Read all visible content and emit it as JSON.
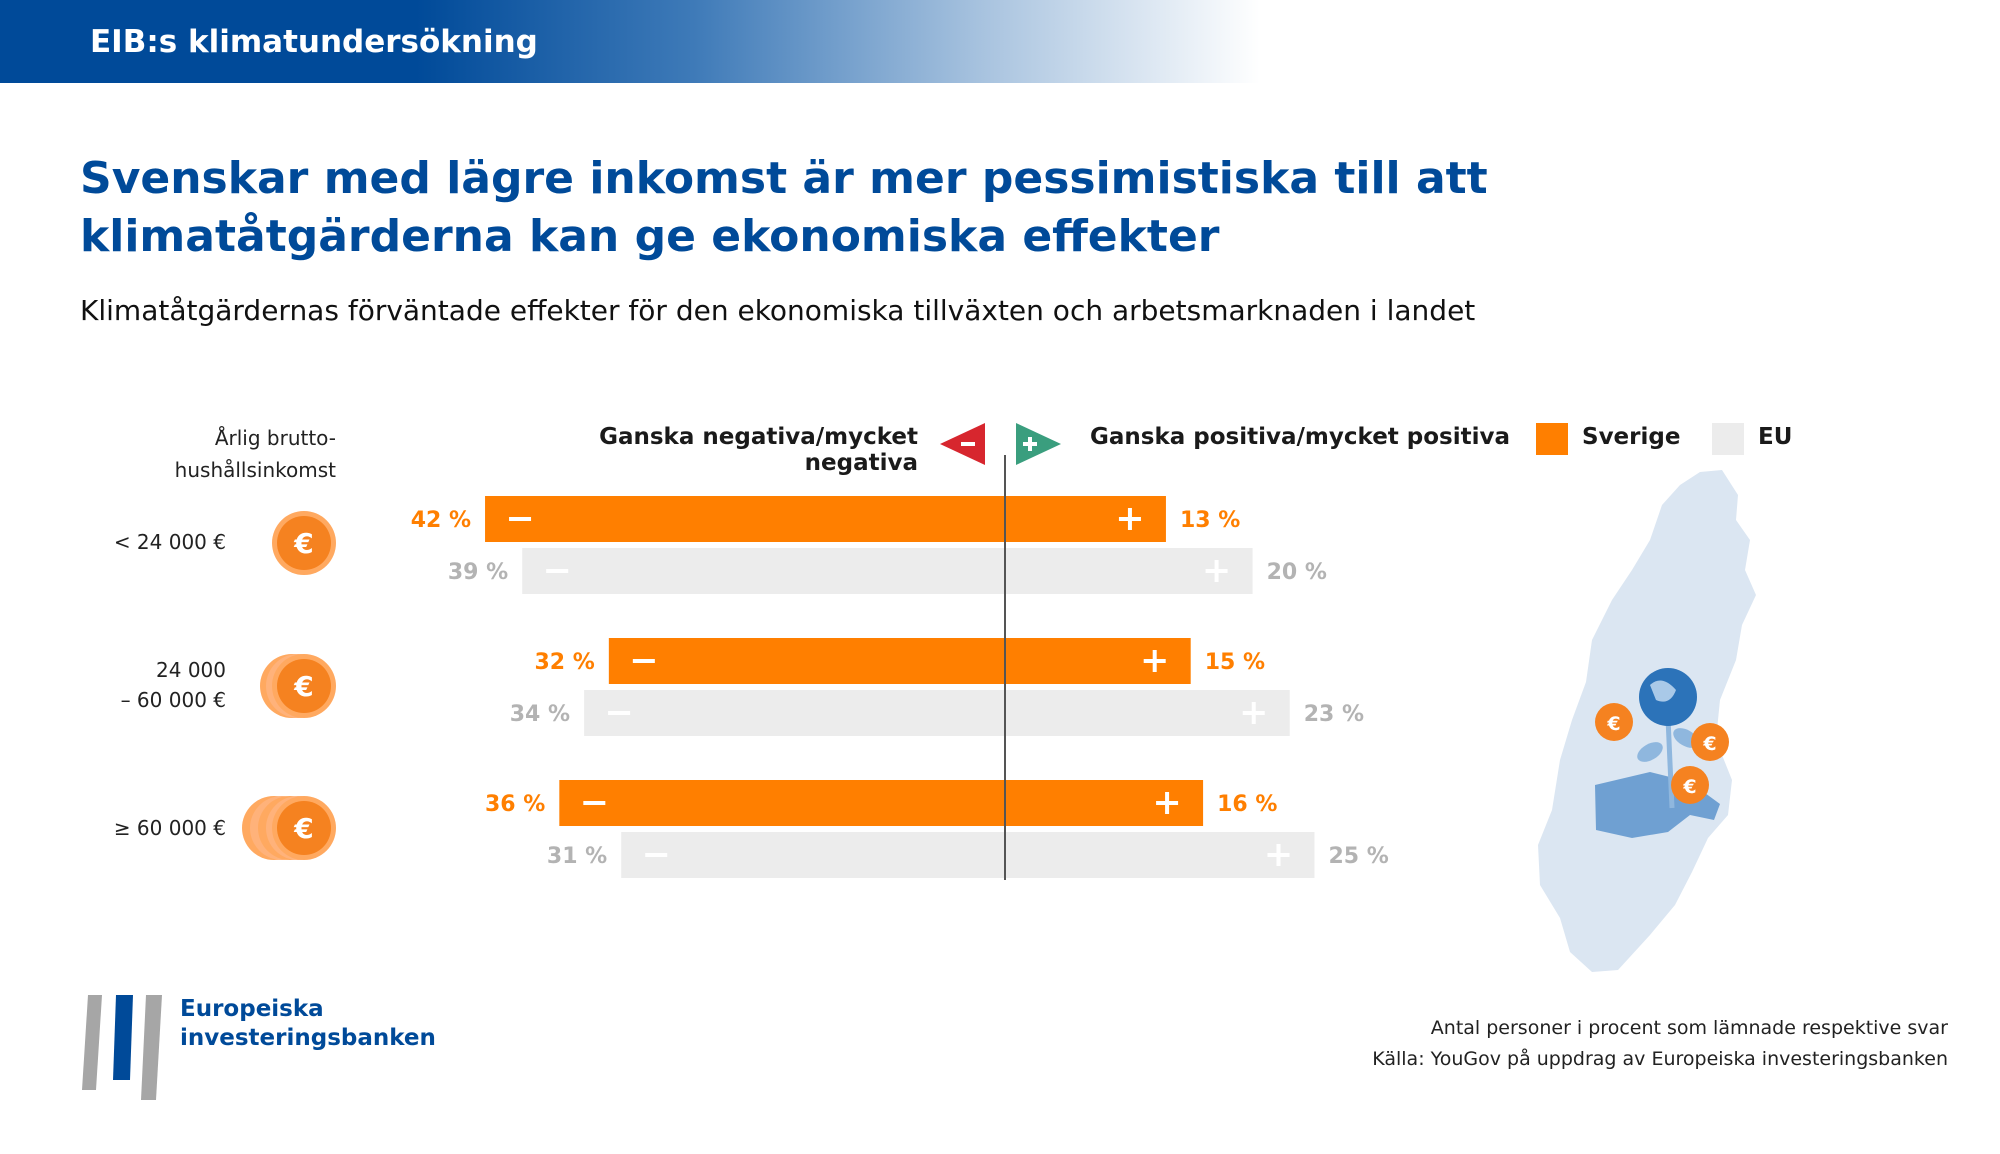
{
  "header": {
    "title": "EIB:s klimatundersökning"
  },
  "headline": {
    "line1": "Svenskar med lägre inkomst är mer pessimistiska till att",
    "line2": "klimatåtgärderna kan ge ekonomiska effekter"
  },
  "subtitle": "Klimatåtgärdernas förväntade effekter för den ekonomiska tillväxten och arbetsmarknaden i landet",
  "income_header": {
    "line1": "Årlig brutto-",
    "line2": "hushållsinkomst"
  },
  "income_groups": [
    {
      "line1": "< 24 000 €",
      "line2": ""
    },
    {
      "line1": "24 000",
      "line2": "– 60 000 €"
    },
    {
      "line1": "≥ 60 000 €",
      "line2": ""
    }
  ],
  "headers": {
    "negative": "Ganska negativa/mycket negativa",
    "positive": "Ganska positiva/mycket positiva"
  },
  "legend": {
    "sverige": "Sverige",
    "eu": "EU"
  },
  "colors": {
    "sverige": "#ff7f00",
    "eu": "#ececec",
    "eu_label": "#b3b3b3",
    "negative_arrow": "#d7262e",
    "positive_arrow": "#3a9e7e",
    "brand_blue": "#004a99"
  },
  "chart_data": {
    "type": "bar",
    "orientation": "horizontal-diverging",
    "categories": [
      "< 24 000 €",
      "24 000 – 60 000 €",
      "≥ 60 000 €"
    ],
    "series": [
      {
        "name": "Sverige",
        "negative": [
          42,
          32,
          36
        ],
        "positive": [
          13,
          15,
          16
        ]
      },
      {
        "name": "EU",
        "negative": [
          39,
          34,
          31
        ],
        "positive": [
          20,
          23,
          25
        ]
      }
    ],
    "unit": "%"
  },
  "logo": {
    "line1": "Europeiska",
    "line2": "investeringsbanken"
  },
  "footnote": {
    "line1": "Antal personer i procent som lämnade respektive svar",
    "line2": "Källa: YouGov på uppdrag av Europeiska investeringsbanken"
  }
}
